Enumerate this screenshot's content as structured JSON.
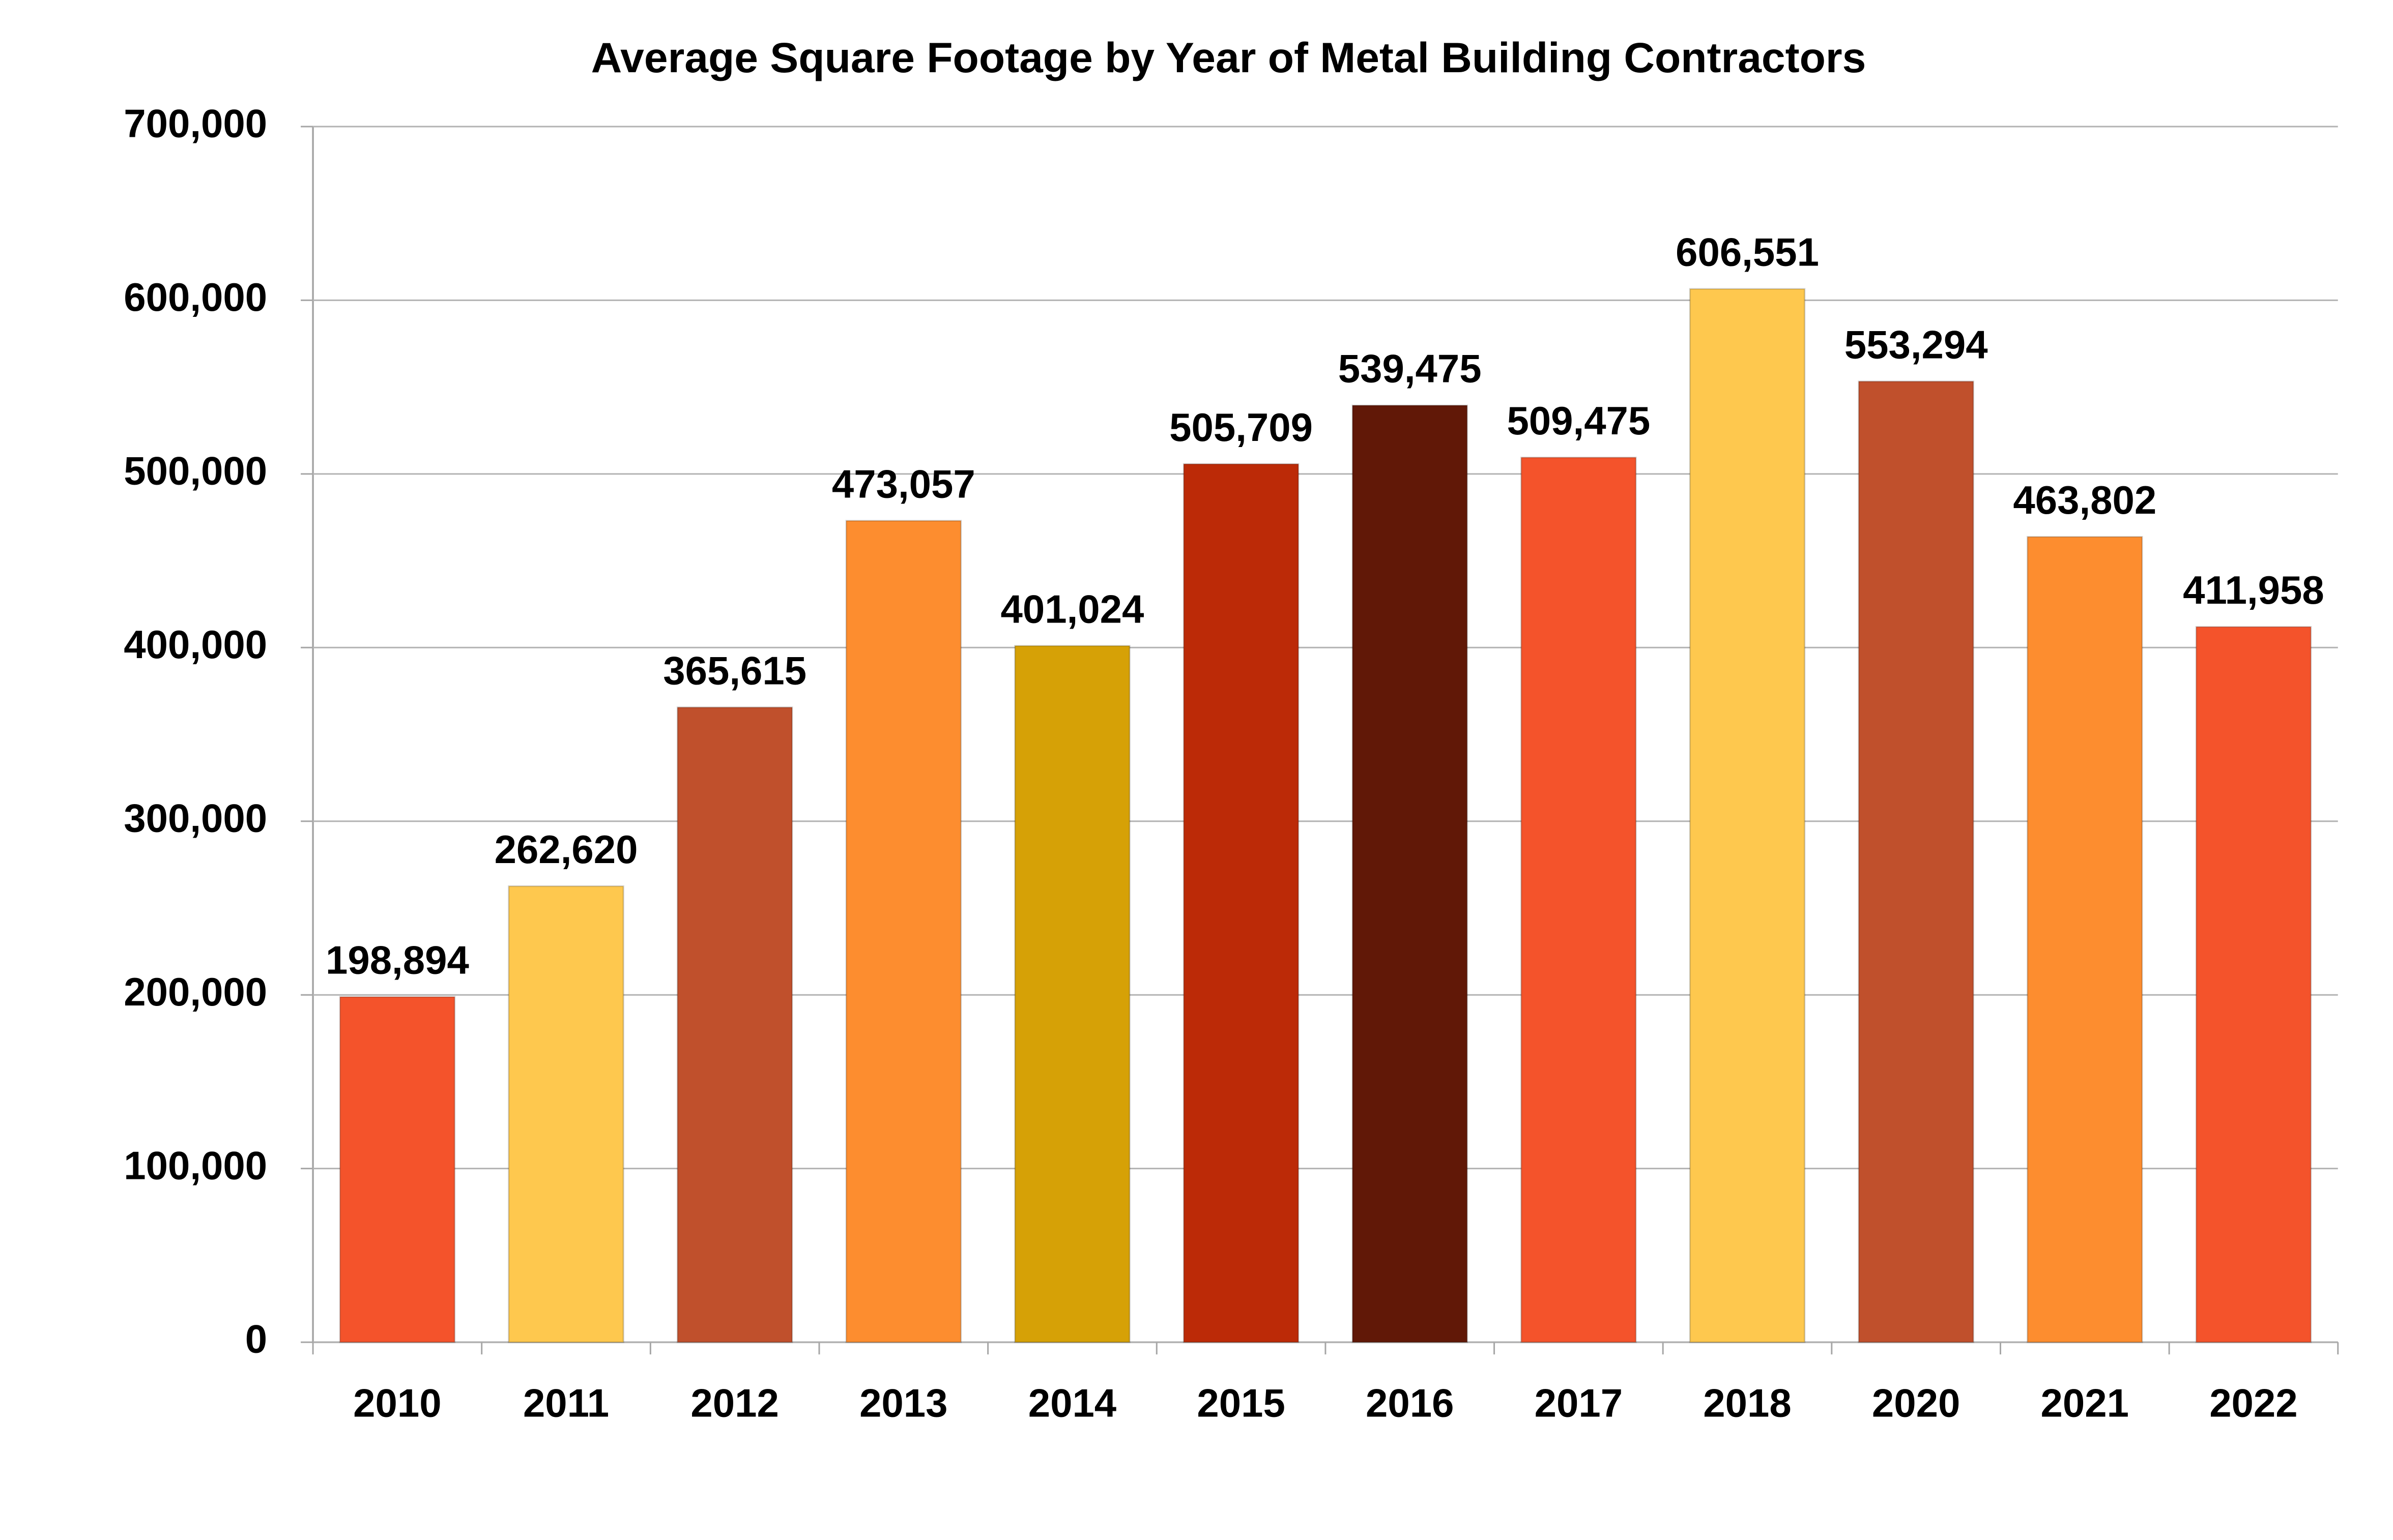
{
  "chart_data": {
    "type": "bar",
    "title": "Average Square Footage by Year of Metal Building Contractors",
    "categories": [
      "2010",
      "2011",
      "2012",
      "2013",
      "2014",
      "2015",
      "2016",
      "2017",
      "2018",
      "2020",
      "2021",
      "2022"
    ],
    "values": [
      198894,
      262620,
      365615,
      473057,
      401024,
      505709,
      539475,
      509475,
      606551,
      553294,
      463802,
      411958
    ],
    "value_labels": [
      "198,894",
      "262,620",
      "365,615",
      "473,057",
      "401,024",
      "505,709",
      "539,475",
      "509,475",
      "606,551",
      "553,294",
      "463,802",
      "411,958"
    ],
    "colors": [
      "#f4532b",
      "#fec84e",
      "#c0502c",
      "#fd8d2f",
      "#d6a106",
      "#bc2a07",
      "#611807",
      "#f4532b",
      "#fec84e",
      "#c0502c",
      "#fd8d2f",
      "#f4532b"
    ],
    "ylim": [
      0,
      700000
    ],
    "yticks": [
      0,
      {
        "value": 100000,
        "label": "100,000"
      },
      {
        "value": 200000,
        "label": "200,000"
      },
      {
        "value": 300000,
        "label": "300,000"
      },
      {
        "value": 400000,
        "label": "400,000"
      },
      {
        "value": 500000,
        "label": "500,000"
      },
      {
        "value": 600000,
        "label": "600,000"
      },
      {
        "value": 700000,
        "label": "700,000"
      }
    ],
    "grid": true
  }
}
